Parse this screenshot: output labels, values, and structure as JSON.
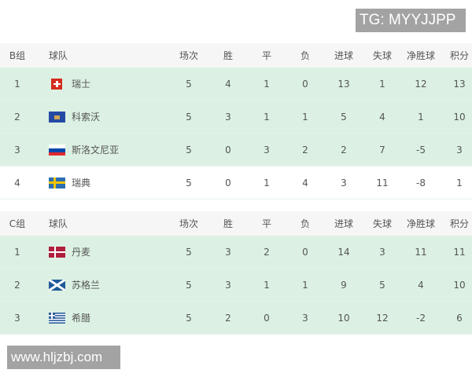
{
  "watermark_top": "TG: MYYJJPP",
  "watermark_bottom": "www.hljzbj.com",
  "columns": [
    "球队",
    "场次",
    "胜",
    "平",
    "负",
    "进球",
    "失球",
    "净胜球",
    "积分"
  ],
  "groups": [
    {
      "label": "B组",
      "rows": [
        {
          "rank": "1",
          "flag": "switzerland-flag",
          "team": "瑞士",
          "stats": [
            "5",
            "4",
            "1",
            "0",
            "13",
            "1",
            "12",
            "13"
          ],
          "qualified": true
        },
        {
          "rank": "2",
          "flag": "kosovo-flag",
          "team": "科索沃",
          "stats": [
            "5",
            "3",
            "1",
            "1",
            "5",
            "4",
            "1",
            "10"
          ],
          "qualified": true
        },
        {
          "rank": "3",
          "flag": "slovenia-flag",
          "team": "斯洛文尼亚",
          "stats": [
            "5",
            "0",
            "3",
            "2",
            "2",
            "7",
            "-5",
            "3"
          ],
          "qualified": true
        },
        {
          "rank": "4",
          "flag": "sweden-flag",
          "team": "瑞典",
          "stats": [
            "5",
            "0",
            "1",
            "4",
            "3",
            "11",
            "-8",
            "1"
          ],
          "qualified": false
        }
      ]
    },
    {
      "label": "C组",
      "rows": [
        {
          "rank": "1",
          "flag": "denmark-flag",
          "team": "丹麦",
          "stats": [
            "5",
            "3",
            "2",
            "0",
            "14",
            "3",
            "11",
            "11"
          ],
          "qualified": true
        },
        {
          "rank": "2",
          "flag": "scotland-flag",
          "team": "苏格兰",
          "stats": [
            "5",
            "3",
            "1",
            "1",
            "9",
            "5",
            "4",
            "10"
          ],
          "qualified": true
        },
        {
          "rank": "3",
          "flag": "greece-flag",
          "team": "希腊",
          "stats": [
            "5",
            "2",
            "0",
            "3",
            "10",
            "12",
            "-2",
            "6"
          ],
          "qualified": true
        }
      ]
    }
  ],
  "colors": {
    "qualified_row": "#dcf1e3",
    "header_row": "#f6f6f6"
  }
}
